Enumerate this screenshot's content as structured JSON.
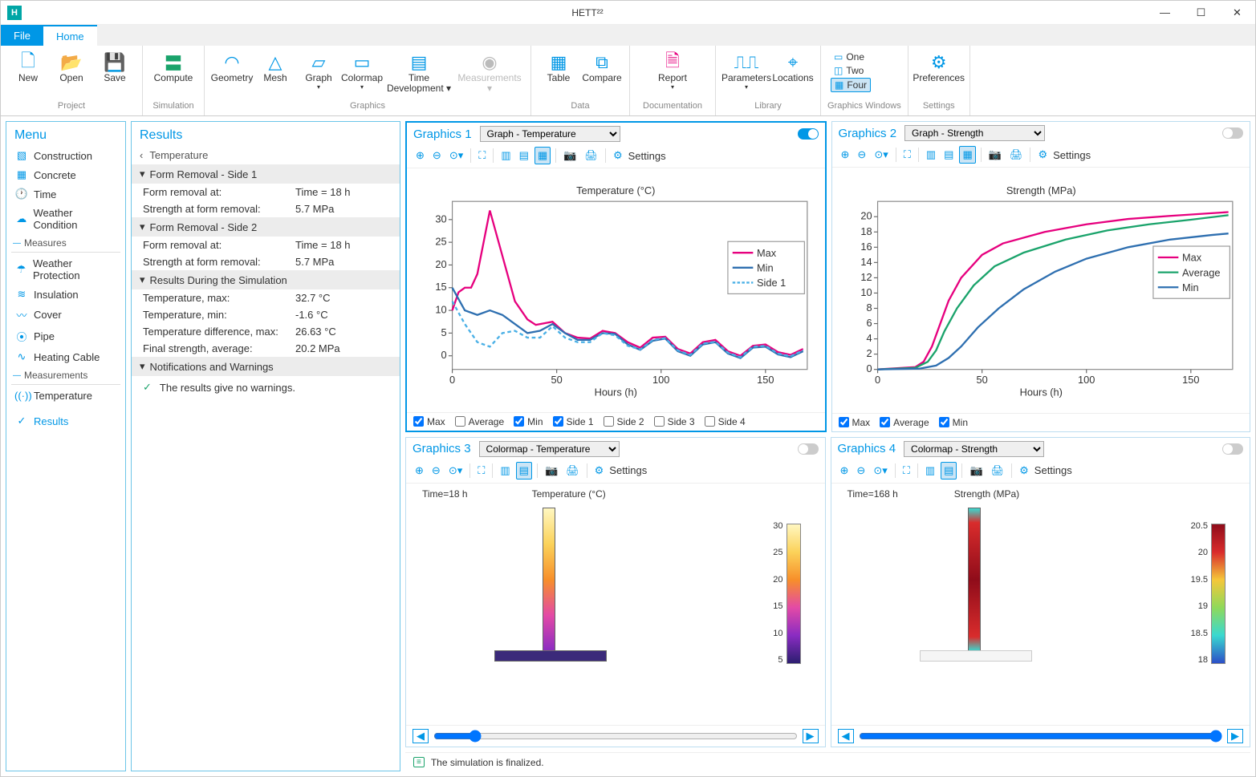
{
  "app": {
    "title": "HETT²²"
  },
  "tabs": {
    "file": "File",
    "home": "Home"
  },
  "ribbon": {
    "project": {
      "label": "Project",
      "new": "New",
      "open": "Open",
      "save": "Save"
    },
    "simulation": {
      "label": "Simulation",
      "compute": "Compute"
    },
    "graphics": {
      "label": "Graphics",
      "geometry": "Geometry",
      "mesh": "Mesh",
      "graph": "Graph",
      "colormap": "Colormap",
      "timedev": "Time Development",
      "measurements": "Measurements"
    },
    "data": {
      "label": "Data",
      "table": "Table",
      "compare": "Compare"
    },
    "documentation": {
      "label": "Documentation",
      "report": "Report"
    },
    "library": {
      "label": "Library",
      "parameters": "Parameters",
      "locations": "Locations"
    },
    "windows": {
      "label": "Graphics Windows",
      "one": "One",
      "two": "Two",
      "four": "Four"
    },
    "settings": {
      "label": "Settings",
      "preferences": "Preferences"
    }
  },
  "menu": {
    "title": "Menu",
    "items": {
      "construction": "Construction",
      "concrete": "Concrete",
      "time": "Time",
      "weather": "Weather Condition",
      "measures_label": "Measures",
      "weather_protection": "Weather Protection",
      "insulation": "Insulation",
      "cover": "Cover",
      "pipe": "Pipe",
      "heating_cable": "Heating Cable",
      "measurements_label": "Measurements",
      "temperature": "Temperature",
      "results": "Results"
    }
  },
  "results": {
    "title": "Results",
    "breadcrumb": "Temperature",
    "side1": {
      "header": "Form Removal - Side 1",
      "removal_label": "Form removal at:",
      "removal_val": "Time = 18 h",
      "strength_label": "Strength at form removal:",
      "strength_val": "5.7 MPa"
    },
    "side2": {
      "header": "Form Removal - Side 2",
      "removal_label": "Form removal at:",
      "removal_val": "Time = 18 h",
      "strength_label": "Strength at form removal:",
      "strength_val": "5.7 MPa"
    },
    "sim": {
      "header": "Results During the Simulation",
      "tmax_l": "Temperature, max:",
      "tmax_v": "32.7 °C",
      "tmin_l": "Temperature, min:",
      "tmin_v": "-1.6 °C",
      "tdiff_l": "Temperature difference, max:",
      "tdiff_v": "26.63 °C",
      "fstr_l": "Final strength, average:",
      "fstr_v": "20.2 MPa"
    },
    "notif": {
      "header": "Notifications and Warnings",
      "msg": "The results give no warnings."
    }
  },
  "graphics": {
    "settings_label": "Settings",
    "g1": {
      "title": "Graphics 1",
      "select": "Graph - Temperature",
      "active": true,
      "chart_title": "Temperature (°C)",
      "xlabel": "Hours (h)",
      "xlim": [
        0,
        170
      ],
      "xticks": [
        0,
        50,
        100,
        150
      ],
      "ylim": [
        -3,
        34
      ],
      "yticks": [
        0,
        5,
        10,
        15,
        20,
        25,
        30
      ],
      "colors": {
        "max": "#e6007e",
        "min": "#2e6fb0",
        "side1": "#4ab0e6"
      },
      "legend": [
        "Max",
        "Min",
        "Side 1"
      ],
      "max_poly": "0,10 3,14 6,15 9,15 12,18 18,32 24,22 30,12 36,8 40,6.8 48,7.5 54,5 60,4 66,3.8 72,5.5 78,5 84,3 90,1.8 96,4 102,4.2 108,1.5 114,0.5 120,3 126,3.5 132,1 138,0 144,2.2 150,2.5 156,0.8 162,0.2 168,1.5",
      "min_poly": "0,15 6,10 12,9 18,10 24,9 30,7 36,5 42,5.5 48,7 54,5 60,3.5 66,3.5 72,5 78,4.8 84,2.5 90,1.3 96,3.3 102,3.8 108,1 114,0 120,2.5 126,3 132,0.5 138,-0.5 144,1.8 150,2 156,0.3 162,-0.3 168,1",
      "side1_poly": "0,12 6,7 12,3 18,2 24,5 30,5.5 36,4 42,4 48,6.5 54,4 60,3 66,3 72,5 78,4.5 84,2.2 90,1.4 96,3.5 102,3.9 108,1.2 114,0.2 120,2.7 126,3.1 132,0.7 138,-0.3 144,2 150,2.2 156,0.5 162,-0.1 168,1.2",
      "checks": {
        "max": "Max",
        "avg": "Average",
        "min": "Min",
        "s1": "Side 1",
        "s2": "Side 2",
        "s3": "Side 3",
        "s4": "Side 4"
      }
    },
    "g2": {
      "title": "Graphics 2",
      "select": "Graph - Strength",
      "chart_title": "Strength (MPa)",
      "xlabel": "Hours (h)",
      "xlim": [
        0,
        170
      ],
      "xticks": [
        0,
        50,
        100,
        150
      ],
      "ylim": [
        0,
        22
      ],
      "yticks": [
        0,
        2,
        4,
        6,
        8,
        10,
        12,
        14,
        16,
        18,
        20
      ],
      "colors": {
        "max": "#e6007e",
        "avg": "#1aa36b",
        "min": "#2e6fb0"
      },
      "legend": [
        "Max",
        "Average",
        "Min"
      ],
      "max_poly": "0,0 18,0.3 22,1 26,3 30,6 34,9 40,12 50,15 60,16.5 80,18 100,19 120,19.7 140,20.1 168,20.6",
      "avg_poly": "0,0 18,0.2 24,1 28,2.5 32,5 38,8 46,11 56,13.5 70,15.3 90,17 110,18.2 130,19 150,19.6 168,20.2",
      "min_poly": "0,0 20,0.1 28,0.5 34,1.5 40,3 48,5.5 58,8 70,10.5 85,12.8 100,14.5 120,16 140,17 160,17.6 168,17.8",
      "checks": {
        "max": "Max",
        "avg": "Average",
        "min": "Min"
      }
    },
    "g3": {
      "title": "Graphics 3",
      "select": "Colormap - Temperature",
      "time_label": "Time=18 h",
      "chart_title": "Temperature (°C)",
      "cbar_ticks": [
        "30",
        "25",
        "20",
        "15",
        "10",
        "5"
      ],
      "cbar_gradient": [
        "#fff7c0",
        "#fbd25a",
        "#f78f2a",
        "#e34aa6",
        "#8a2cc2",
        "#2c1e70"
      ]
    },
    "g4": {
      "title": "Graphics 4",
      "select": "Colormap - Strength",
      "time_label": "Time=168 h",
      "chart_title": "Strength (MPa)",
      "cbar_ticks": [
        "20.5",
        "20",
        "19.5",
        "19",
        "18.5",
        "18"
      ],
      "cbar_gradient": [
        "#8f0c1a",
        "#d92c2c",
        "#f5c73a",
        "#8fd95a",
        "#3ad9d0",
        "#2c4fc7"
      ]
    }
  },
  "status": {
    "msg": "The simulation is finalized."
  }
}
